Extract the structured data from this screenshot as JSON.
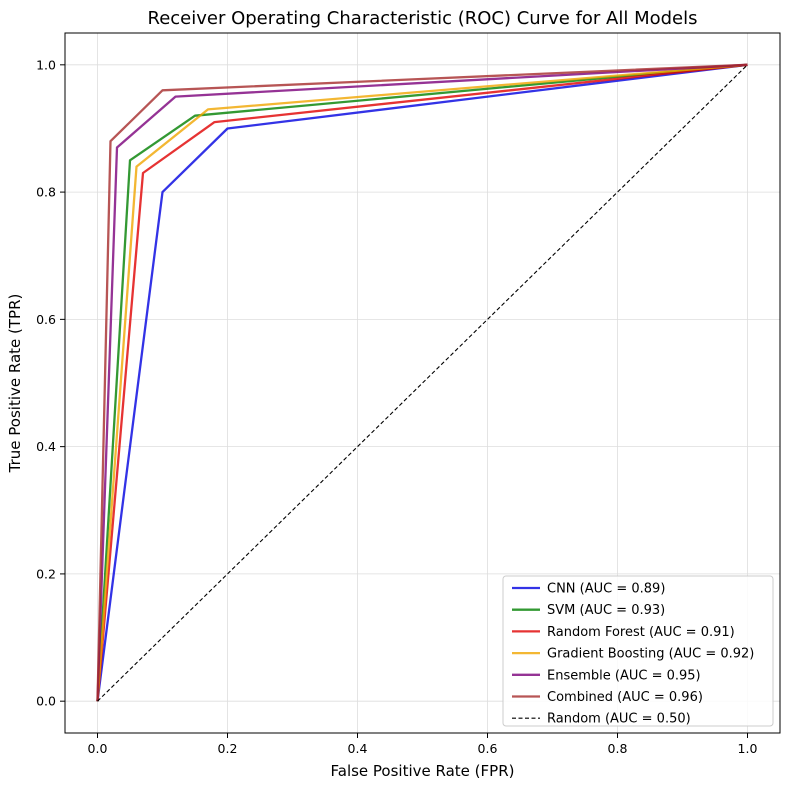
{
  "chart_data": {
    "type": "line",
    "title": "Receiver Operating Characteristic (ROC) Curve for All Models",
    "xlabel": "False Positive Rate (FPR)",
    "ylabel": "True Positive Rate (TPR)",
    "xlim": [
      -0.05,
      1.05
    ],
    "ylim": [
      -0.05,
      1.05
    ],
    "xticks": [
      "0.0",
      "0.2",
      "0.4",
      "0.6",
      "0.8",
      "1.0"
    ],
    "yticks": [
      "0.0",
      "0.2",
      "0.4",
      "0.6",
      "0.8",
      "1.0"
    ],
    "grid": true,
    "legend_position": "lower-right",
    "series": [
      {
        "name": "CNN (AUC = 0.89)",
        "color": "#0000e0",
        "style": "solid",
        "x": [
          0.0,
          0.1,
          0.2,
          1.0
        ],
        "y": [
          0.0,
          0.8,
          0.9,
          1.0
        ]
      },
      {
        "name": "SVM (AUC = 0.93)",
        "color": "#007f00",
        "style": "solid",
        "x": [
          0.0,
          0.05,
          0.15,
          1.0
        ],
        "y": [
          0.0,
          0.85,
          0.92,
          1.0
        ]
      },
      {
        "name": "Random Forest (AUC = 0.91)",
        "color": "#e00000",
        "style": "solid",
        "x": [
          0.0,
          0.07,
          0.18,
          1.0
        ],
        "y": [
          0.0,
          0.83,
          0.91,
          1.0
        ]
      },
      {
        "name": "Gradient Boosting (AUC = 0.92)",
        "color": "#f0a500",
        "style": "solid",
        "x": [
          0.0,
          0.06,
          0.17,
          1.0
        ],
        "y": [
          0.0,
          0.84,
          0.93,
          1.0
        ]
      },
      {
        "name": "Ensemble (AUC = 0.95)",
        "color": "#7b007b",
        "style": "solid",
        "x": [
          0.0,
          0.03,
          0.12,
          1.0
        ],
        "y": [
          0.0,
          0.87,
          0.95,
          1.0
        ]
      },
      {
        "name": "Combined (AUC = 0.96)",
        "color": "#a52a2a",
        "style": "solid",
        "x": [
          0.0,
          0.02,
          0.1,
          1.0
        ],
        "y": [
          0.0,
          0.88,
          0.96,
          1.0
        ]
      },
      {
        "name": "Random (AUC = 0.50)",
        "color": "#000000",
        "style": "dashed",
        "x": [
          0.0,
          1.0
        ],
        "y": [
          0.0,
          1.0
        ]
      }
    ]
  }
}
